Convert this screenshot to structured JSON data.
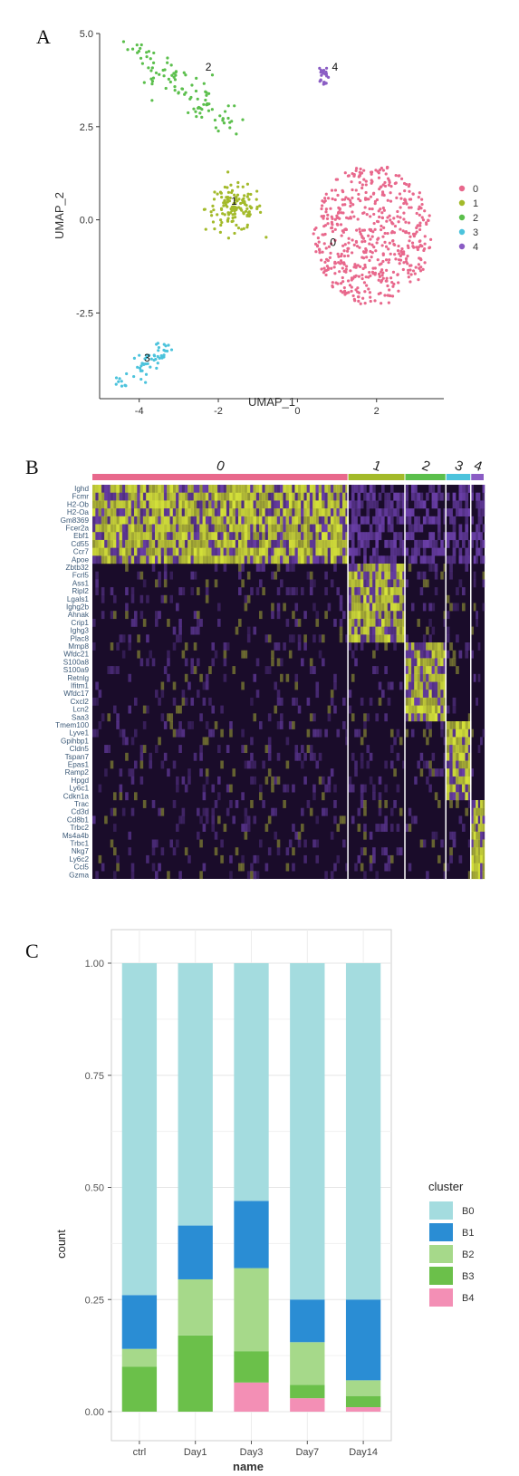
{
  "panels": {
    "a": "A",
    "b": "B",
    "c": "C"
  },
  "chart_data": [
    {
      "type": "scatter",
      "panel": "A",
      "xlabel": "UMAP_1",
      "ylabel": "UMAP_2",
      "xlim": [
        -5.0,
        3.7
      ],
      "ylim": [
        -4.8,
        5.0
      ],
      "x_ticks": [
        -4,
        -2,
        0,
        2
      ],
      "y_ticks": [
        -2.5,
        0.0,
        2.5,
        5.0
      ],
      "y_tick_labels": [
        "-2.5",
        "0.0",
        "2.5",
        "5.0"
      ],
      "legend_position": "right",
      "legend": [
        {
          "label": "0",
          "color": "#e8688c"
        },
        {
          "label": "1",
          "color": "#a3ba2a"
        },
        {
          "label": "2",
          "color": "#5bbf4c"
        },
        {
          "label": "3",
          "color": "#4cc3dc"
        },
        {
          "label": "4",
          "color": "#8a5cc4"
        }
      ],
      "clusters": [
        {
          "label": "0",
          "center": [
            1.9,
            -0.4
          ],
          "spread": [
            1.5,
            1.9
          ],
          "n": 560,
          "label_pos": [
            0.9,
            -0.7
          ]
        },
        {
          "label": "1",
          "center": [
            -1.6,
            0.3
          ],
          "spread": [
            0.9,
            0.75
          ],
          "n": 130,
          "label_pos": [
            -1.6,
            0.4
          ]
        },
        {
          "label": "2",
          "center": [
            -2.5,
            3.6
          ],
          "spread": [
            0.85,
            0.6
          ],
          "n": 100,
          "label_pos": [
            -2.25,
            4.0
          ]
        },
        {
          "label": "3",
          "center": [
            -3.95,
            -3.9
          ],
          "spread": [
            0.45,
            0.35
          ],
          "n": 55,
          "label_pos": [
            -3.8,
            -3.8
          ]
        },
        {
          "label": "4",
          "center": [
            0.65,
            3.85
          ],
          "spread": [
            0.13,
            0.35
          ],
          "n": 22,
          "label_pos": [
            0.95,
            4.0
          ]
        }
      ]
    },
    {
      "type": "heatmap",
      "panel": "B",
      "colors": {
        "low": "#1a0c2a",
        "mid": "#6a3fa8",
        "high": "#d6e33a"
      },
      "columns": [
        {
          "label": "0",
          "color": "#e8688c",
          "weight": 0.575
        },
        {
          "label": "1",
          "color": "#a3ba2a",
          "weight": 0.128
        },
        {
          "label": "2",
          "color": "#5bbf4c",
          "weight": 0.092
        },
        {
          "label": "3",
          "color": "#4cc3dc",
          "weight": 0.056
        },
        {
          "label": "4",
          "color": "#8a5cc4",
          "weight": 0.03
        }
      ],
      "genes": [
        "Ighd",
        "Fcmr",
        "H2-Ob",
        "H2-Oa",
        "Gm8369",
        "Fcer2a",
        "Ebf1",
        "Cd55",
        "Ccr7",
        "Apoe",
        "Zbtb32",
        "Fcrl5",
        "Ass1",
        "Ripl2",
        "Lgals1",
        "Ighg2b",
        "Ahnak",
        "Crip1",
        "Ighg3",
        "Plac8",
        "Mmp8",
        "Wfdc21",
        "S100a8",
        "S100a9",
        "Retnlg",
        "Ifitm1",
        "Wfdc17",
        "Cxcl2",
        "Lcn2",
        "Saa3",
        "Tmem100",
        "Lyve1",
        "Gpihbp1",
        "Cldn5",
        "Tspan7",
        "Epas1",
        "Ramp2",
        "Hpgd",
        "Ly6c1",
        "Cdkn1a",
        "Trac",
        "Cd3d",
        "Cd8b1",
        "Trbc2",
        "Ms4a4b",
        "Trbc1",
        "Nkg7",
        "Ly6c2",
        "Ccl5",
        "Gzma"
      ],
      "gene_groups": [
        10,
        10,
        10,
        10,
        10
      ]
    },
    {
      "type": "bar",
      "stacked": true,
      "panel": "C",
      "xlabel": "name",
      "ylabel": "count",
      "ylim": [
        0,
        1.0
      ],
      "y_ticks": [
        0,
        0.25,
        0.5,
        0.75,
        1.0
      ],
      "y_tick_labels": [
        "0.00",
        "0.25",
        "0.50",
        "0.75",
        "1.00"
      ],
      "grid": true,
      "categories": [
        "ctrl",
        "Day1",
        "Day3",
        "Day7",
        "Day14"
      ],
      "legend_title": "cluster",
      "legend_position": "right",
      "stack_order": [
        "B4",
        "B3",
        "B2",
        "B1",
        "B0"
      ],
      "series": [
        {
          "name": "B0",
          "color": "#a4dcdf",
          "values": [
            0.74,
            0.585,
            0.53,
            0.75,
            0.75
          ]
        },
        {
          "name": "B1",
          "color": "#2a8dd4",
          "values": [
            0.12,
            0.12,
            0.15,
            0.095,
            0.18
          ]
        },
        {
          "name": "B2",
          "color": "#a6d98a",
          "values": [
            0.04,
            0.125,
            0.185,
            0.095,
            0.035
          ]
        },
        {
          "name": "B3",
          "color": "#6bc04a",
          "values": [
            0.1,
            0.17,
            0.07,
            0.03,
            0.025
          ]
        },
        {
          "name": "B4",
          "color": "#f38fb5",
          "values": [
            0.0,
            0.0,
            0.065,
            0.03,
            0.01
          ]
        }
      ]
    }
  ]
}
